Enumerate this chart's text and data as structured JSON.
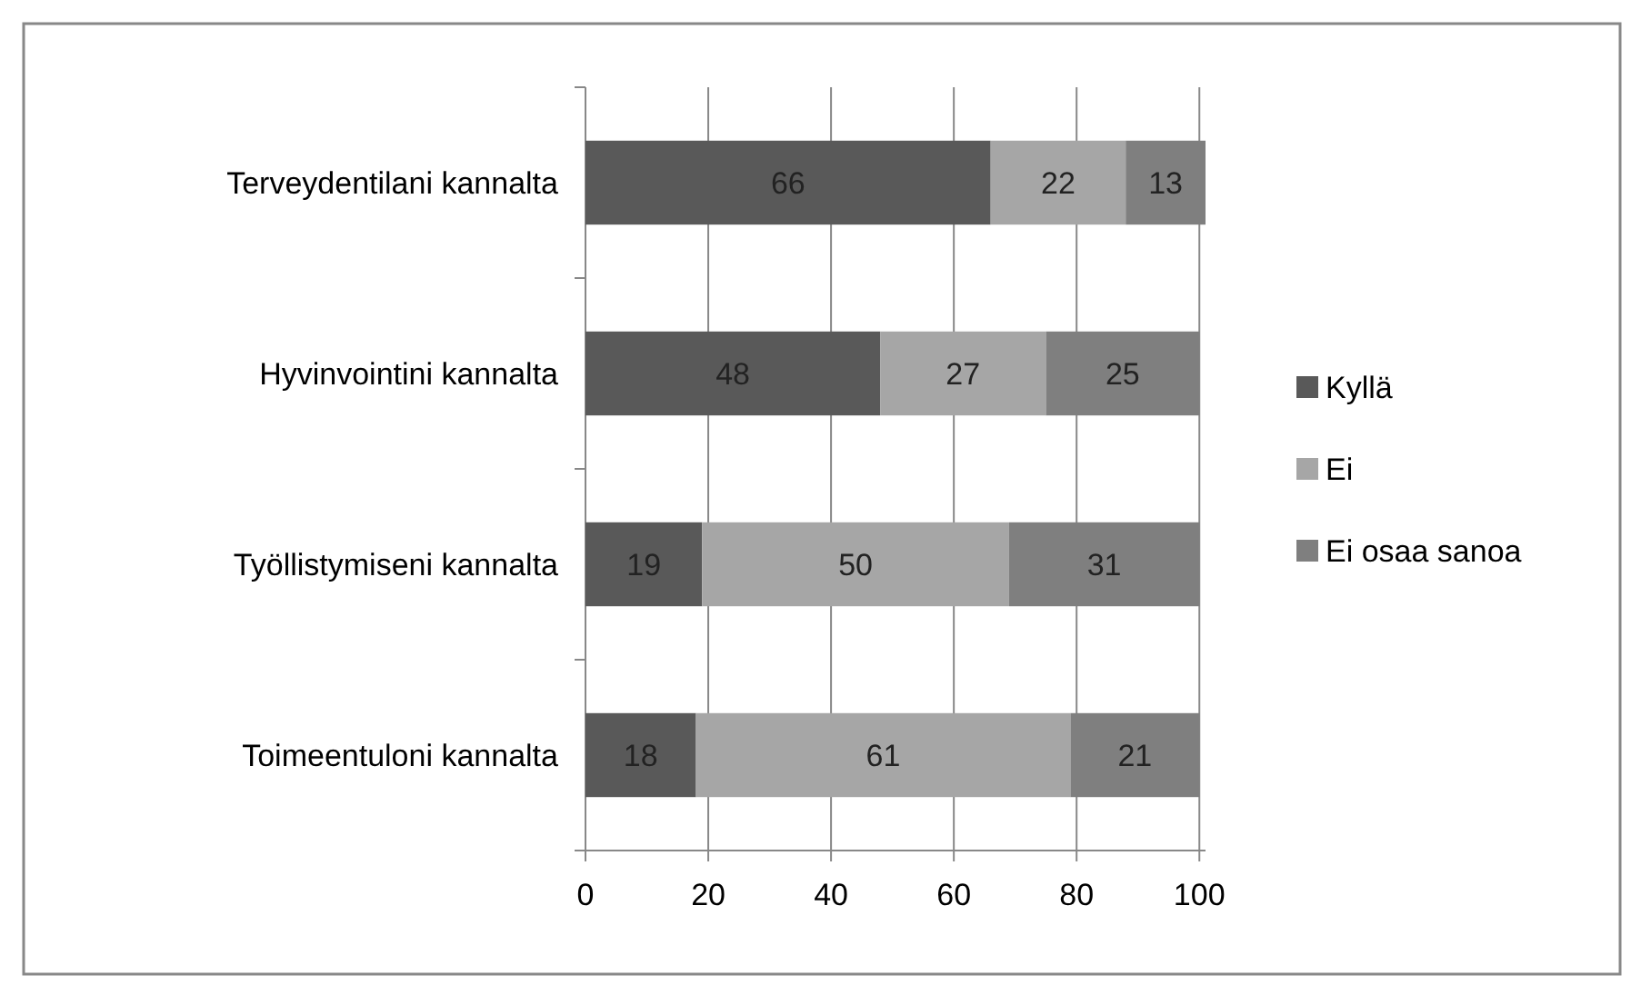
{
  "chart_data": {
    "type": "bar",
    "orientation": "horizontal",
    "stacked": true,
    "categories": [
      "Terveydentilani kannalta",
      "Hyvinvointini kannalta",
      "Työllistymiseni kannalta",
      "Toimeentuloni kannalta"
    ],
    "series": [
      {
        "name": "Kyllä",
        "color": "#595959",
        "values": [
          66,
          48,
          19,
          18
        ]
      },
      {
        "name": "Ei",
        "color": "#a6a6a6",
        "values": [
          22,
          27,
          50,
          61
        ]
      },
      {
        "name": "Ei osaa sanoa",
        "color": "#7f7f7f",
        "values": [
          13,
          25,
          31,
          21
        ]
      }
    ],
    "xlim": [
      0,
      101
    ],
    "xticks": [
      0,
      20,
      40,
      60,
      80,
      100
    ],
    "grid": "x",
    "legend": "right",
    "data_labels": true
  }
}
